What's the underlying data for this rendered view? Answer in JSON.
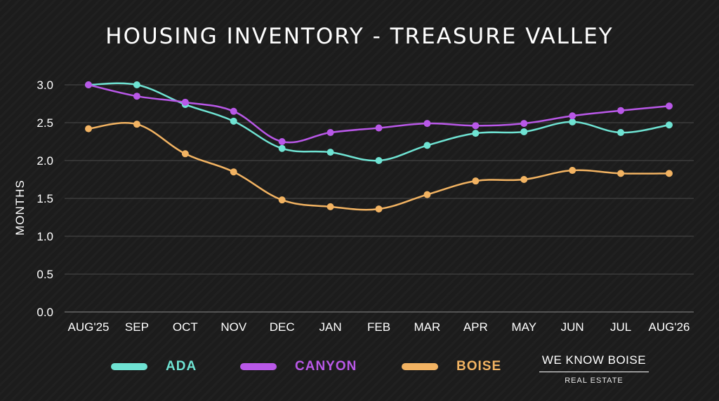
{
  "chart_data": {
    "type": "line",
    "title": "HOUSING INVENTORY - TREASURE VALLEY",
    "ylabel": "MONTHS",
    "xlabel": "",
    "categories": [
      "AUG'25",
      "SEP",
      "OCT",
      "NOV",
      "DEC",
      "JAN",
      "FEB",
      "MAR",
      "APR",
      "MAY",
      "JUN",
      "JUL",
      "AUG'26"
    ],
    "ylim": [
      0,
      3.0
    ],
    "yticks": [
      "0.0",
      "0.5",
      "1.0",
      "1.5",
      "2.0",
      "2.5",
      "3.0"
    ],
    "grid": true,
    "legend_position": "bottom",
    "series": [
      {
        "name": "ADA",
        "color": "#6fe3d3",
        "values": [
          3.0,
          3.0,
          2.74,
          2.52,
          2.16,
          2.11,
          2.0,
          2.2,
          2.36,
          2.38,
          2.51,
          2.37,
          2.47
        ]
      },
      {
        "name": "CANYON",
        "color": "#b958e8",
        "values": [
          3.0,
          2.85,
          2.77,
          2.65,
          2.25,
          2.37,
          2.43,
          2.49,
          2.46,
          2.49,
          2.59,
          2.66,
          2.72
        ]
      },
      {
        "name": "BOISE",
        "color": "#f2b362",
        "values": [
          2.42,
          2.48,
          2.09,
          1.85,
          1.48,
          1.39,
          1.36,
          1.55,
          1.73,
          1.75,
          1.87,
          1.83,
          1.83
        ]
      }
    ]
  },
  "legend": [
    {
      "label": "ADA",
      "color": "#6fe3d3"
    },
    {
      "label": "CANYON",
      "color": "#b958e8"
    },
    {
      "label": "BOISE",
      "color": "#f2b362"
    }
  ],
  "brand": {
    "name": "WE KNOW BOISE",
    "sub": "REAL ESTATE"
  }
}
